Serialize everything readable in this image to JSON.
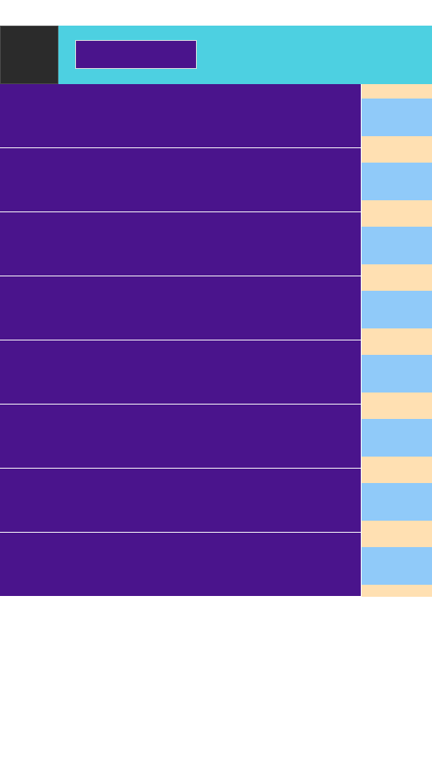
{
  "colors": {
    "header_background": "#4dd0e1",
    "nav_button": "#2b2b2b",
    "title_block": "#4a148c",
    "item_background": "#4a148c",
    "side_panel_outer": "#ffe0b2",
    "side_panel_inner": "#90caf9",
    "page_background": "#ffffff"
  },
  "header": {
    "nav_icon": "menu-icon",
    "title": ""
  },
  "list": {
    "items": [
      {
        "text": ""
      },
      {
        "text": ""
      },
      {
        "text": ""
      },
      {
        "text": ""
      },
      {
        "text": ""
      },
      {
        "text": ""
      },
      {
        "text": ""
      },
      {
        "text": ""
      }
    ]
  }
}
